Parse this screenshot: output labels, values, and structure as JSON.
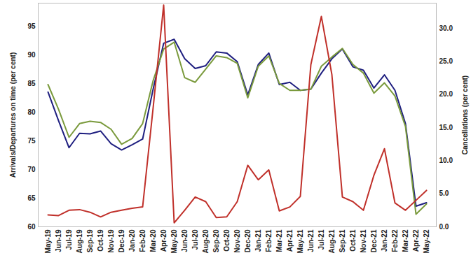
{
  "chart_data": {
    "type": "line",
    "y_label": "Arrivals/Departures on time (per cent)",
    "y2_label": "Cancellations (per cent)",
    "x": [
      "May-19",
      "Jun-19",
      "Jul-19",
      "Aug-19",
      "Sep-19",
      "Oct-19",
      "Nov-19",
      "Dec-19",
      "Jan-20",
      "Feb-20",
      "Mar-20",
      "Apr-20",
      "May-20",
      "Jun-20",
      "Jul-20",
      "Aug-20",
      "Sep-20",
      "Oct-20",
      "Nov-20",
      "Dec-20",
      "Jan-21",
      "Feb-21",
      "Mar-21",
      "Apr-21",
      "May-21",
      "Jun-21",
      "Jul-21",
      "Aug-21",
      "Sep-21",
      "Oct-21",
      "Nov-21",
      "Dec-21",
      "Jan-22",
      "Feb-22",
      "Mar-22",
      "Apr-22",
      "May-22"
    ],
    "ylim": [
      60,
      99
    ],
    "yticks": [
      60,
      65,
      70,
      75,
      80,
      85,
      90,
      95
    ],
    "y2lim": [
      0,
      33.8
    ],
    "y2ticks": [
      {
        "value": 0,
        "label": "0.0"
      },
      {
        "value": 5,
        "label": "5.0"
      },
      {
        "value": 10,
        "label": "10.0"
      },
      {
        "value": 15,
        "label": "15.0"
      },
      {
        "value": 20,
        "label": "20.0"
      },
      {
        "value": 25,
        "label": "25.0"
      },
      {
        "value": 30,
        "label": "30.0"
      }
    ],
    "grid": false,
    "series": [
      {
        "color": "#1f1f80",
        "values": [
          83.5,
          78.5,
          73.8,
          76.3,
          76.2,
          76.7,
          74.5,
          73.4,
          74.3,
          75.3,
          84,
          92,
          92.7,
          89.3,
          87.6,
          88.1,
          90.5,
          90.3,
          88.8,
          83,
          88.3,
          90.3,
          84.8,
          85.2,
          83.8,
          84,
          86.8,
          89.3,
          91,
          87.9,
          87.3,
          84.2,
          86.5,
          83.8,
          78,
          63.6,
          64.2
        ]
      },
      {
        "color": "#7a9a3c",
        "values": [
          84.8,
          80.5,
          75.6,
          78,
          78.4,
          78.2,
          77,
          74.4,
          75.4,
          78,
          85.5,
          91,
          92.2,
          86,
          85.2,
          87.5,
          89.8,
          89.5,
          88.5,
          82.5,
          88,
          89.8,
          85,
          83.8,
          83.8,
          84,
          88,
          89.6,
          91.1,
          88.3,
          86.8,
          83.3,
          85.1,
          82.8,
          77.5,
          62.2,
          64
        ]
      },
      {
        "color": "#c0302a",
        "axis": "y2",
        "values": [
          1.8,
          1.7,
          2.5,
          2.6,
          2.2,
          1.5,
          2.2,
          2.5,
          2.8,
          3.0,
          18,
          33.5,
          0.6,
          2.5,
          4.5,
          3.8,
          1.4,
          1.5,
          3.8,
          9.3,
          7.1,
          8.6,
          2.4,
          3.0,
          4.6,
          24.5,
          31.8,
          23,
          4.5,
          3.8,
          2.5,
          7.8,
          11.8,
          3.6,
          2.5,
          4.0,
          5.5
        ]
      }
    ]
  }
}
